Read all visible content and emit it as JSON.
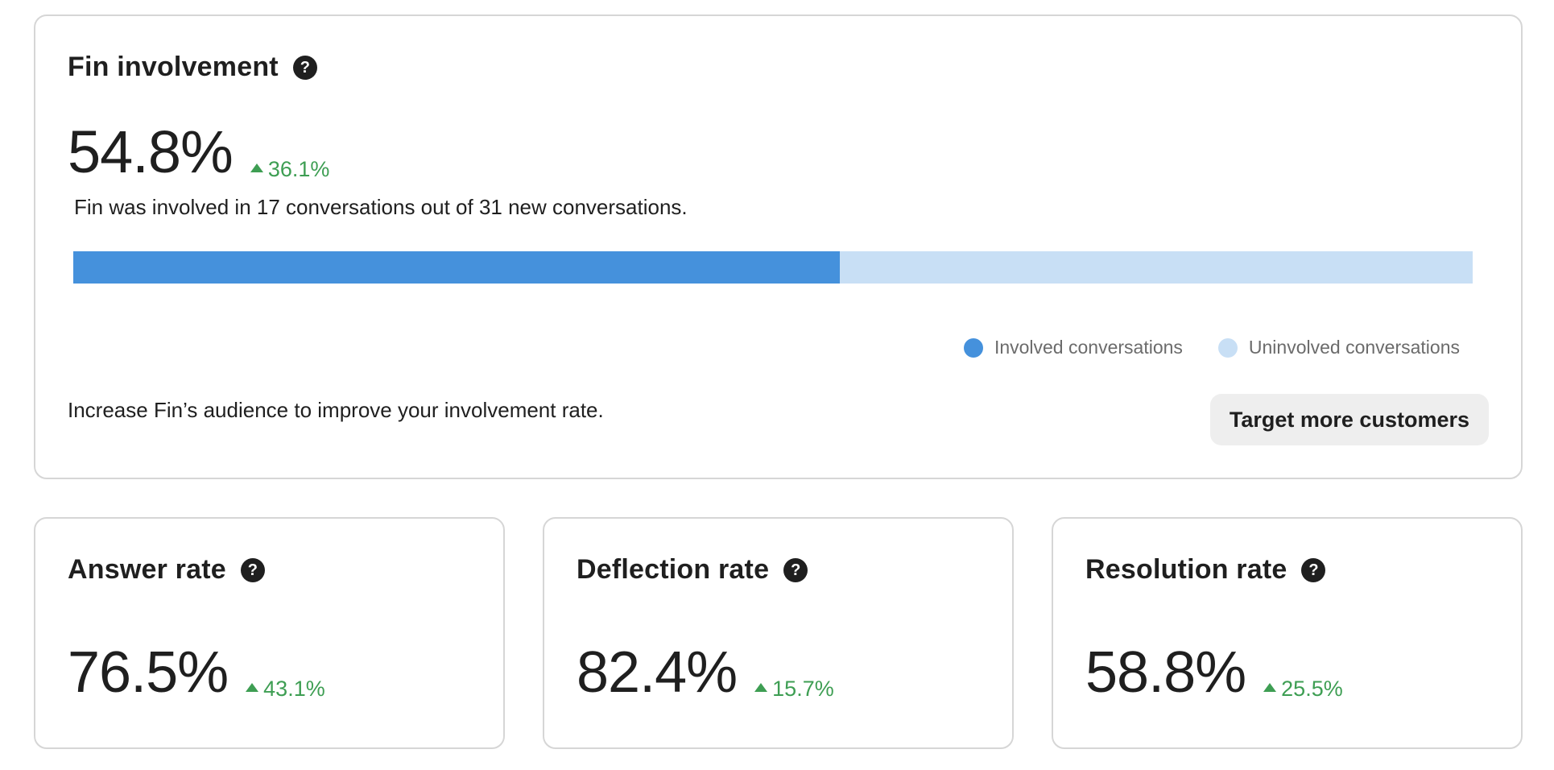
{
  "involvement": {
    "title": "Fin involvement",
    "value": "54.8%",
    "delta": "36.1%",
    "subtitle": "Fin was involved in 17 conversations out of 31 new conversations.",
    "involved_count": 17,
    "total_count": 31,
    "involved_fraction": 0.548,
    "legend": {
      "involved": "Involved conversations",
      "uninvolved": "Uninvolved conversations"
    },
    "footer_text": "Increase Fin’s audience to improve your involvement rate.",
    "button_label": "Target more customers"
  },
  "metrics": [
    {
      "title": "Answer rate",
      "value": "76.5%",
      "delta": "43.1%"
    },
    {
      "title": "Deflection rate",
      "value": "82.4%",
      "delta": "15.7%"
    },
    {
      "title": "Resolution rate",
      "value": "58.8%",
      "delta": "25.5%"
    }
  ],
  "icons": {
    "help": "?"
  },
  "colors": {
    "involved": "#4591dc",
    "uninvolved": "#c8dff5",
    "positive_delta": "#3e9e53"
  }
}
